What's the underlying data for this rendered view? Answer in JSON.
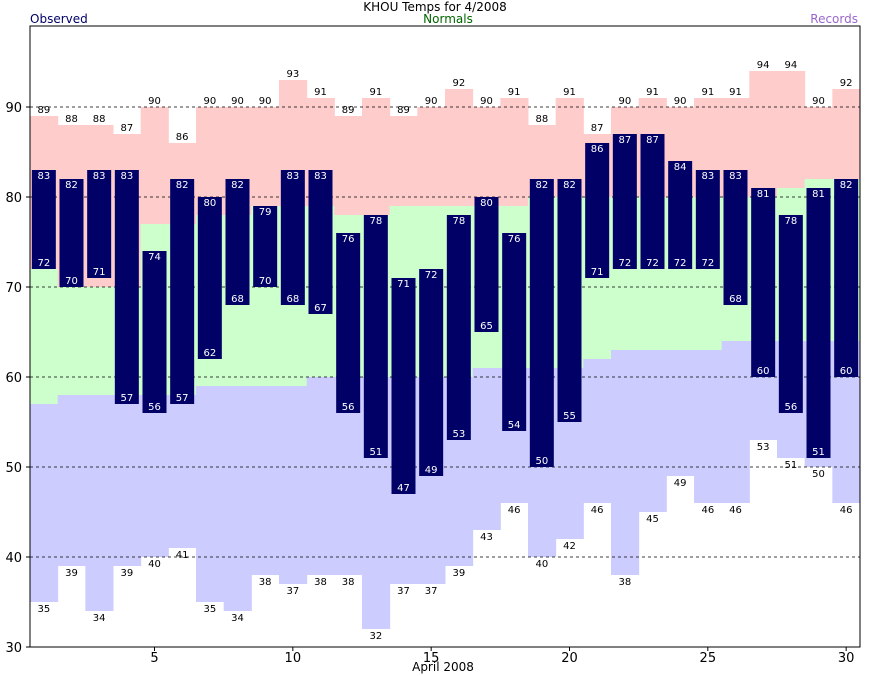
{
  "chart_data": {
    "type": "bar",
    "title": "KHOU Temps for 4/2008",
    "xlabel": "April 2008",
    "legend": {
      "observed": "Observed",
      "normals": "Normals",
      "records": "Records"
    },
    "colors": {
      "observed": "#000066",
      "normals": "#006600",
      "records": "#9966cc",
      "record_band": "#ffcccc",
      "normal_band": "#ccffcc",
      "record_low_band": "#ccccff"
    },
    "xlim": [
      0.5,
      30.5
    ],
    "ylim": [
      30,
      99
    ],
    "x_ticks": [
      5,
      10,
      15,
      20,
      25,
      30
    ],
    "y_ticks": [
      30,
      40,
      50,
      60,
      70,
      80,
      90
    ],
    "dashed_gridlines": [
      40,
      50,
      60,
      70,
      80,
      90
    ],
    "days": [
      1,
      2,
      3,
      4,
      5,
      6,
      7,
      8,
      9,
      10,
      11,
      12,
      13,
      14,
      15,
      16,
      17,
      18,
      19,
      20,
      21,
      22,
      23,
      24,
      25,
      26,
      27,
      28,
      29,
      30
    ],
    "observed_high": [
      83,
      82,
      83,
      83,
      74,
      82,
      80,
      82,
      79,
      83,
      83,
      76,
      78,
      71,
      72,
      78,
      80,
      76,
      82,
      82,
      86,
      87,
      87,
      84,
      83,
      83,
      81,
      78,
      81,
      82
    ],
    "observed_low": [
      72,
      70,
      71,
      57,
      56,
      57,
      62,
      68,
      70,
      68,
      67,
      56,
      51,
      47,
      49,
      53,
      65,
      54,
      50,
      55,
      71,
      72,
      72,
      72,
      72,
      68,
      60,
      56,
      51,
      60
    ],
    "record_high": [
      89,
      88,
      88,
      87,
      90,
      86,
      90,
      90,
      90,
      93,
      91,
      89,
      91,
      89,
      90,
      92,
      90,
      91,
      88,
      91,
      87,
      90,
      91,
      90,
      91,
      91,
      94,
      94,
      90,
      92
    ],
    "record_low": [
      35,
      39,
      34,
      39,
      40,
      41,
      35,
      34,
      38,
      37,
      38,
      38,
      32,
      37,
      37,
      39,
      43,
      46,
      40,
      42,
      46,
      38,
      45,
      49,
      46,
      46,
      53,
      51,
      50,
      46
    ],
    "normal_high": [
      72,
      70,
      70,
      70,
      77,
      77,
      78,
      78,
      79,
      79,
      79,
      78,
      78,
      79,
      79,
      79,
      79,
      79,
      80,
      80,
      80,
      80,
      80,
      80,
      80,
      80,
      80,
      81,
      82,
      82
    ],
    "normal_low": [
      57,
      58,
      58,
      58,
      58,
      58,
      59,
      59,
      59,
      59,
      60,
      60,
      60,
      60,
      60,
      60,
      61,
      61,
      61,
      61,
      62,
      63,
      63,
      63,
      63,
      64,
      64,
      64,
      64,
      64
    ]
  }
}
